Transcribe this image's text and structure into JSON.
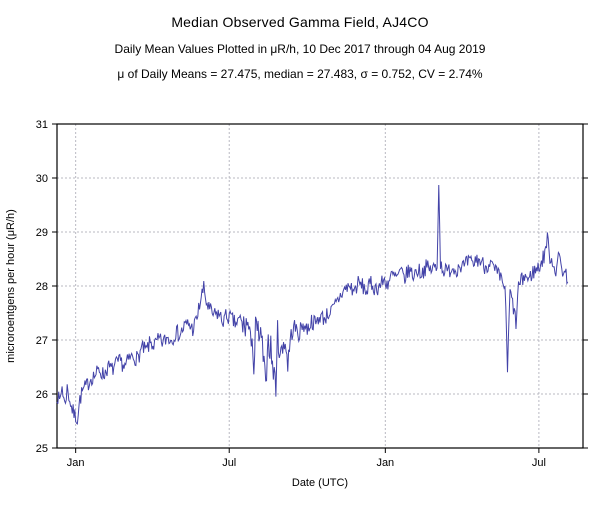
{
  "chart_data": {
    "type": "line",
    "title": "Median Observed Gamma Field, AJ4CO",
    "subtitle": "Daily Mean Values Plotted in μR/h, 10 Dec 2017 through 04 Aug 2019",
    "stats_line": "μ of Daily Means = 27.475,   median = 27.483,   σ = 0.752,   CV = 2.74%",
    "xlabel": "Date (UTC)",
    "ylabel": "microroentgens per hour (μR/h)",
    "ylim": [
      25,
      31
    ],
    "y_ticks": [
      25,
      26,
      27,
      28,
      29,
      30,
      31
    ],
    "x_domain_days": [
      0,
      620
    ],
    "x_ticks": [
      {
        "label": "Jan",
        "day": 22
      },
      {
        "label": "Jul",
        "day": 203
      },
      {
        "label": "Jan",
        "day": 387
      },
      {
        "label": "Jul",
        "day": 568
      }
    ],
    "grid": true,
    "legend": "none",
    "line_color": "#4343a8",
    "summary": {
      "mean": 27.475,
      "median": 27.483,
      "sigma": 0.752,
      "cv_percent": 2.74
    },
    "series": [
      {
        "name": "daily-mean-gamma-uRh",
        "noise": {
          "amplitude": 0.15,
          "volatile_range_days": [
            215,
            272
          ],
          "volatile_amplitude": 0.28,
          "seed": 7
        },
        "anchors": [
          [
            0,
            26.0
          ],
          [
            3,
            25.85
          ],
          [
            6,
            26.15
          ],
          [
            9,
            25.8
          ],
          [
            12,
            26.1
          ],
          [
            15,
            25.9
          ],
          [
            18,
            25.7
          ],
          [
            21,
            25.6
          ],
          [
            24,
            25.55
          ],
          [
            27,
            25.9
          ],
          [
            30,
            26.05
          ],
          [
            35,
            26.15
          ],
          [
            40,
            26.3
          ],
          [
            45,
            26.35
          ],
          [
            50,
            26.45
          ],
          [
            55,
            26.35
          ],
          [
            60,
            26.5
          ],
          [
            65,
            26.45
          ],
          [
            70,
            26.55
          ],
          [
            75,
            26.6
          ],
          [
            80,
            26.5
          ],
          [
            85,
            26.65
          ],
          [
            90,
            26.7
          ],
          [
            95,
            26.65
          ],
          [
            100,
            26.85
          ],
          [
            105,
            26.8
          ],
          [
            110,
            26.95
          ],
          [
            115,
            26.9
          ],
          [
            120,
            27.0
          ],
          [
            125,
            26.95
          ],
          [
            130,
            27.05
          ],
          [
            135,
            27.0
          ],
          [
            140,
            27.15
          ],
          [
            145,
            27.1
          ],
          [
            150,
            27.25
          ],
          [
            155,
            27.3
          ],
          [
            160,
            27.2
          ],
          [
            165,
            27.4
          ],
          [
            170,
            27.8
          ],
          [
            173,
            27.95
          ],
          [
            176,
            27.7
          ],
          [
            180,
            27.55
          ],
          [
            185,
            27.45
          ],
          [
            190,
            27.5
          ],
          [
            195,
            27.35
          ],
          [
            200,
            27.45
          ],
          [
            205,
            27.4
          ],
          [
            210,
            27.3
          ],
          [
            215,
            27.35
          ],
          [
            220,
            27.25
          ],
          [
            225,
            27.3
          ],
          [
            228,
            26.9
          ],
          [
            230,
            27.25
          ],
          [
            232,
            26.35
          ],
          [
            234,
            27.2
          ],
          [
            238,
            27.1
          ],
          [
            242,
            26.9
          ],
          [
            246,
            26.05
          ],
          [
            248,
            27.0
          ],
          [
            252,
            26.85
          ],
          [
            255,
            26.4
          ],
          [
            258,
            26.2
          ],
          [
            260,
            27.1
          ],
          [
            264,
            26.7
          ],
          [
            268,
            27.05
          ],
          [
            272,
            26.6
          ],
          [
            276,
            27.1
          ],
          [
            280,
            27.25
          ],
          [
            285,
            27.1
          ],
          [
            290,
            27.3
          ],
          [
            295,
            27.2
          ],
          [
            300,
            27.35
          ],
          [
            305,
            27.3
          ],
          [
            310,
            27.45
          ],
          [
            315,
            27.4
          ],
          [
            320,
            27.5
          ],
          [
            325,
            27.55
          ],
          [
            330,
            27.7
          ],
          [
            335,
            27.85
          ],
          [
            340,
            27.95
          ],
          [
            345,
            28.0
          ],
          [
            350,
            27.9
          ],
          [
            355,
            28.05
          ],
          [
            360,
            28.0
          ],
          [
            365,
            27.9
          ],
          [
            370,
            28.05
          ],
          [
            375,
            27.95
          ],
          [
            380,
            28.0
          ],
          [
            385,
            28.1
          ],
          [
            390,
            28.05
          ],
          [
            395,
            28.2
          ],
          [
            400,
            28.15
          ],
          [
            405,
            28.25
          ],
          [
            410,
            28.15
          ],
          [
            415,
            28.3
          ],
          [
            420,
            28.2
          ],
          [
            425,
            28.3
          ],
          [
            430,
            28.25
          ],
          [
            435,
            28.35
          ],
          [
            440,
            28.3
          ],
          [
            445,
            28.35
          ],
          [
            448,
            28.3
          ],
          [
            450,
            30.0
          ],
          [
            452,
            28.4
          ],
          [
            456,
            28.3
          ],
          [
            460,
            28.25
          ],
          [
            465,
            28.35
          ],
          [
            470,
            28.3
          ],
          [
            475,
            28.4
          ],
          [
            480,
            28.35
          ],
          [
            485,
            28.45
          ],
          [
            490,
            28.4
          ],
          [
            495,
            28.5
          ],
          [
            500,
            28.45
          ],
          [
            505,
            28.35
          ],
          [
            510,
            28.45
          ],
          [
            515,
            28.3
          ],
          [
            520,
            28.2
          ],
          [
            524,
            28.1
          ],
          [
            528,
            28.0
          ],
          [
            531,
            26.45
          ],
          [
            534,
            27.9
          ],
          [
            538,
            27.6
          ],
          [
            541,
            27.3
          ],
          [
            544,
            28.0
          ],
          [
            548,
            28.1
          ],
          [
            552,
            28.2
          ],
          [
            556,
            28.1
          ],
          [
            560,
            28.25
          ],
          [
            565,
            28.3
          ],
          [
            570,
            28.4
          ],
          [
            574,
            28.55
          ],
          [
            578,
            28.9
          ],
          [
            580,
            28.6
          ],
          [
            584,
            28.45
          ],
          [
            588,
            28.3
          ],
          [
            592,
            28.55
          ],
          [
            596,
            28.3
          ],
          [
            600,
            28.2
          ],
          [
            602,
            28.15
          ]
        ]
      }
    ]
  }
}
